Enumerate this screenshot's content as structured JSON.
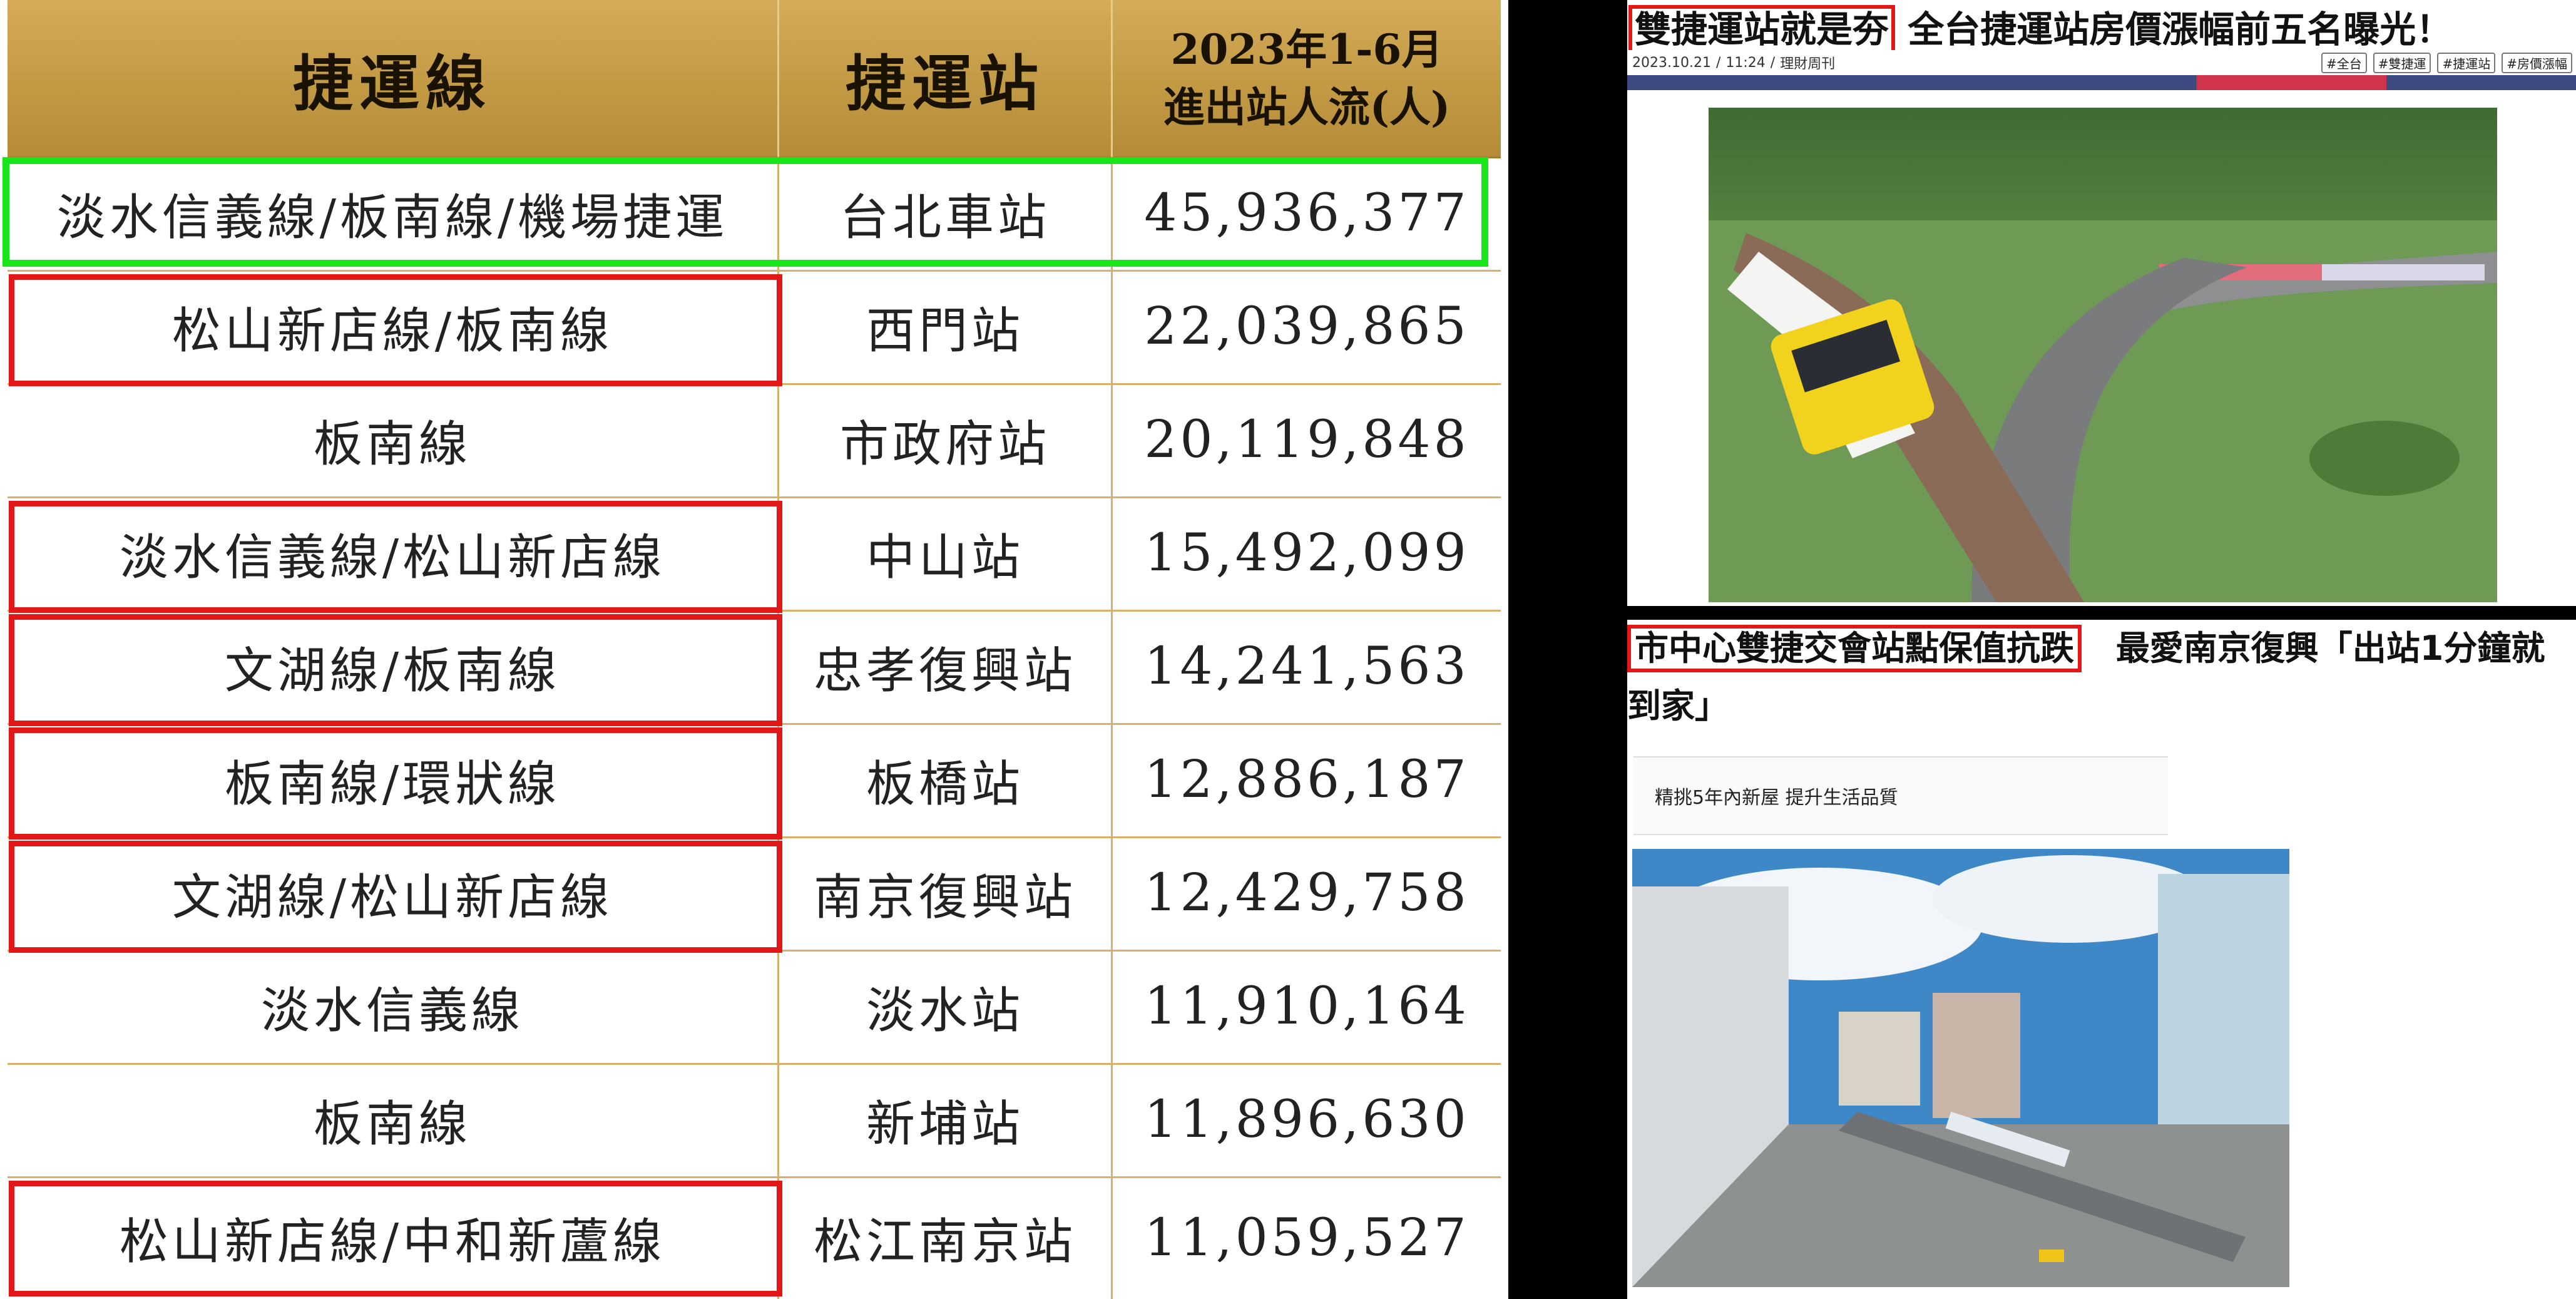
{
  "table": {
    "headers": {
      "line": "捷運線",
      "station": "捷運站",
      "flow_line1": "2023年1-6月",
      "flow_line2": "進出站人流(人)"
    },
    "rows": [
      {
        "line": "淡水信義線/板南線/機場捷運",
        "station": "台北車站",
        "flow": "45,936,377",
        "highlight": "green"
      },
      {
        "line": "松山新店線/板南線",
        "station": "西門站",
        "flow": "22,039,865",
        "highlight": "red"
      },
      {
        "line": "板南線",
        "station": "市政府站",
        "flow": "20,119,848",
        "highlight": "none"
      },
      {
        "line": "淡水信義線/松山新店線",
        "station": "中山站",
        "flow": "15,492,099",
        "highlight": "red"
      },
      {
        "line": "文湖線/板南線",
        "station": "忠孝復興站",
        "flow": "14,241,563",
        "highlight": "red"
      },
      {
        "line": "板南線/環狀線",
        "station": "板橋站",
        "flow": "12,886,187",
        "highlight": "red"
      },
      {
        "line": "文湖線/松山新店線",
        "station": "南京復興站",
        "flow": "12,429,758",
        "highlight": "red"
      },
      {
        "line": "淡水信義線",
        "station": "淡水站",
        "flow": "11,910,164",
        "highlight": "none"
      },
      {
        "line": "板南線",
        "station": "新埔站",
        "flow": "11,896,630",
        "highlight": "none"
      },
      {
        "line": "松山新店線/中和新蘆線",
        "station": "松江南京站",
        "flow": "11,059,527",
        "highlight": "red"
      }
    ]
  },
  "article1": {
    "title_highlight": "雙捷運站就是夯",
    "title_rest": "全台捷運站房價漲幅前五名曝光！",
    "date": "2023.10.21",
    "time": "11:24",
    "source": "理財周刊",
    "tags": [
      "#全台",
      "#雙捷運",
      "#捷運站",
      "#房價漲幅"
    ]
  },
  "article2": {
    "title_highlight": "市中心雙捷交會站點保值抗跌",
    "title_rest": "最愛南京復興「出站1分鐘就",
    "title_line2": "到家」",
    "subtitle": "精挑5年內新屋 提升生活品質"
  },
  "colors": {
    "header_gold": "#c29a44",
    "grid_line": "#d9b06a",
    "highlight_green": "#19e619",
    "highlight_red": "#e21818",
    "background": "#000000"
  }
}
